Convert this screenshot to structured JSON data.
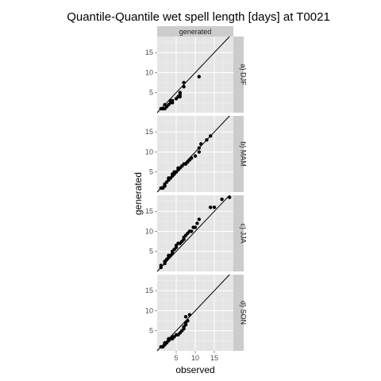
{
  "chart_data": {
    "type": "scatter",
    "title": "Quantile-Quantile wet spell length [days] at T0021",
    "top_strip": "generated",
    "xlabel": "observed",
    "ylabel": "generated",
    "xlim": [
      0,
      20
    ],
    "ylim": [
      0,
      19
    ],
    "x_ticks": [
      5,
      10,
      15
    ],
    "y_ticks": [
      5,
      10,
      15
    ],
    "reference_line": "y = x",
    "grid": true,
    "background": "#e5e5e5",
    "strip_color": "#cccccc",
    "point_color": "#000000",
    "panels": [
      {
        "label": "a) DJF",
        "points": [
          [
            1,
            1
          ],
          [
            1.5,
            1
          ],
          [
            2,
            1
          ],
          [
            2,
            2
          ],
          [
            2.5,
            1.5
          ],
          [
            3,
            2
          ],
          [
            3.5,
            2.5
          ],
          [
            3.5,
            3
          ],
          [
            4,
            2.5
          ],
          [
            4,
            3
          ],
          [
            5,
            3.5
          ],
          [
            5.5,
            4
          ],
          [
            6,
            4
          ],
          [
            6,
            4.5
          ],
          [
            6,
            5
          ],
          [
            7,
            6.5
          ],
          [
            7,
            7.5
          ],
          [
            11,
            9
          ]
        ]
      },
      {
        "label": "b) MAM",
        "points": [
          [
            1,
            1
          ],
          [
            1.5,
            1
          ],
          [
            2,
            1.5
          ],
          [
            2,
            2
          ],
          [
            2.5,
            2.5
          ],
          [
            3,
            3
          ],
          [
            3,
            3.5
          ],
          [
            3.5,
            3.5
          ],
          [
            4,
            4
          ],
          [
            4,
            4.5
          ],
          [
            4.5,
            4.5
          ],
          [
            4.5,
            5
          ],
          [
            5,
            5
          ],
          [
            5.5,
            5.5
          ],
          [
            5.5,
            6
          ],
          [
            6,
            6
          ],
          [
            6.5,
            6.5
          ],
          [
            7,
            7
          ],
          [
            7.5,
            7
          ],
          [
            8,
            7.5
          ],
          [
            8.5,
            8
          ],
          [
            9,
            8.5
          ],
          [
            10,
            9
          ],
          [
            11,
            10
          ],
          [
            11,
            11
          ],
          [
            11.5,
            12
          ],
          [
            13,
            13
          ],
          [
            14,
            14
          ]
        ]
      },
      {
        "label": "c) JJA",
        "points": [
          [
            1,
            1
          ],
          [
            1,
            1.5
          ],
          [
            2,
            2
          ],
          [
            2,
            2.5
          ],
          [
            2.5,
            3
          ],
          [
            3,
            3.5
          ],
          [
            3,
            4
          ],
          [
            3.5,
            4
          ],
          [
            4,
            4.5
          ],
          [
            4,
            5
          ],
          [
            4.5,
            5.5
          ],
          [
            5,
            6
          ],
          [
            5,
            6.5
          ],
          [
            5.5,
            7
          ],
          [
            6,
            7
          ],
          [
            6.5,
            7.5
          ],
          [
            7,
            8
          ],
          [
            7,
            8.5
          ],
          [
            7.5,
            9
          ],
          [
            8,
            9.5
          ],
          [
            8.5,
            10
          ],
          [
            9,
            10
          ],
          [
            9.5,
            11
          ],
          [
            10,
            11
          ],
          [
            10.5,
            12
          ],
          [
            11,
            13
          ],
          [
            14,
            16
          ],
          [
            15,
            16
          ],
          [
            17,
            18
          ],
          [
            19,
            18.5
          ]
        ]
      },
      {
        "label": "d) SON",
        "points": [
          [
            1,
            1
          ],
          [
            1.5,
            1
          ],
          [
            2,
            1.5
          ],
          [
            2,
            2
          ],
          [
            2.5,
            2
          ],
          [
            3,
            2.5
          ],
          [
            3,
            3
          ],
          [
            3.5,
            3
          ],
          [
            4,
            3
          ],
          [
            4,
            3.5
          ],
          [
            4.5,
            3.5
          ],
          [
            5,
            4
          ],
          [
            5.5,
            4
          ],
          [
            6,
            4.5
          ],
          [
            6.5,
            5
          ],
          [
            7,
            5.5
          ],
          [
            7,
            6
          ],
          [
            7.5,
            6.5
          ],
          [
            7.5,
            7
          ],
          [
            8,
            7.5
          ],
          [
            7.5,
            8.5
          ],
          [
            8.5,
            9
          ]
        ]
      }
    ]
  }
}
